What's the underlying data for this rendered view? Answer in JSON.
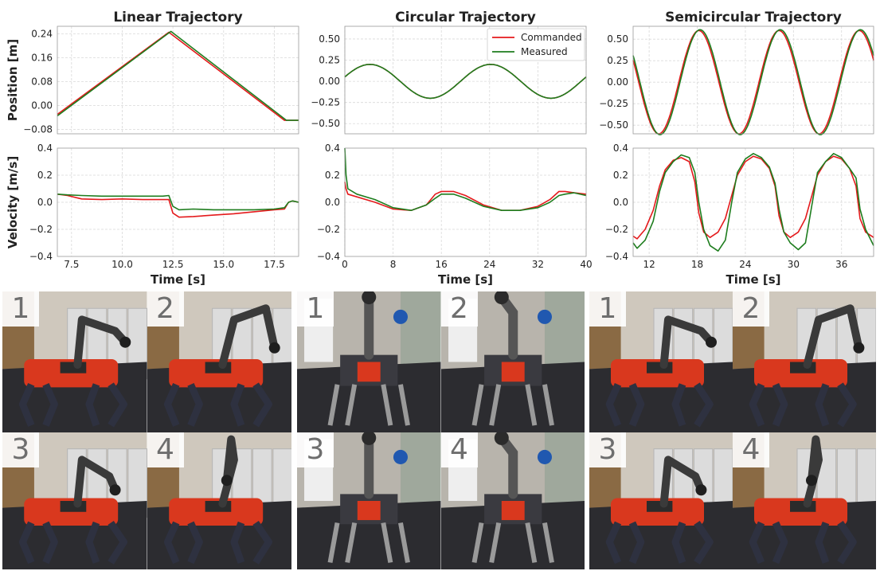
{
  "colors": {
    "commanded": "#e41a1c",
    "measured": "#1e7d1e",
    "grid": "#d9d9d9",
    "axis": "#9a9a9a",
    "robot_body": "#d9381e",
    "wall": "#cfc8bd",
    "floor": "#2c2c30",
    "locker": "#dcdcdc"
  },
  "legend": {
    "commanded": "Commanded",
    "measured": "Measured"
  },
  "ylabels": {
    "position": "Position [m]",
    "velocity": "Velocity [m/s]"
  },
  "chart_data": [
    {
      "type": "line",
      "title": "Linear Trajectory",
      "xlabel": "Time [s]",
      "ylabel": "Position [m]",
      "xlim": [
        6.8,
        18.7
      ],
      "ylim": [
        -0.095,
        0.265
      ],
      "yticks": [
        -0.08,
        0.0,
        0.08,
        0.16,
        0.24
      ],
      "ytick_labels": [
        "−0.08",
        "0.00",
        "0.08",
        "0.16",
        "0.24"
      ],
      "xticks": [
        7.5,
        10.0,
        12.5,
        15.0,
        17.5
      ],
      "xtick_labels": [
        "7.5",
        "10.0",
        "12.5",
        "15.0",
        "17.5"
      ],
      "series": [
        {
          "name": "Commanded",
          "x": [
            6.8,
            12.3,
            18.0,
            18.7
          ],
          "y": [
            -0.03,
            0.245,
            -0.05,
            -0.05
          ]
        },
        {
          "name": "Measured",
          "x": [
            6.8,
            12.4,
            18.1,
            18.7
          ],
          "y": [
            -0.035,
            0.248,
            -0.05,
            -0.05
          ]
        }
      ]
    },
    {
      "type": "line",
      "title": "Circular Trajectory",
      "xlabel": "Time [s]",
      "ylabel": "Position [m]",
      "xlim": [
        0,
        40
      ],
      "ylim": [
        -0.62,
        0.65
      ],
      "yticks": [
        -0.5,
        -0.25,
        0.0,
        0.25,
        0.5
      ],
      "ytick_labels": [
        "−0.50",
        "−0.25",
        "0.00",
        "0.25",
        "0.50"
      ],
      "xticks": [
        0,
        8,
        16,
        24,
        32,
        40
      ],
      "xtick_labels": [
        "0",
        "8",
        "16",
        "24",
        "32",
        "40"
      ],
      "legend_position": "top-right",
      "series": [
        {
          "name": "Commanded",
          "fn": "sine",
          "amp": 0.2,
          "period": 20,
          "phase_deg": 15,
          "offset": 0.0
        },
        {
          "name": "Measured",
          "fn": "sine",
          "amp": 0.2,
          "period": 20,
          "phase_deg": 15,
          "offset": 0.0
        }
      ]
    },
    {
      "type": "line",
      "title": "Semicircular Trajectory",
      "xlabel": "Time [s]",
      "ylabel": "Position [m]",
      "xlim": [
        10,
        40
      ],
      "ylim": [
        -0.6,
        0.65
      ],
      "yticks": [
        -0.5,
        -0.25,
        0.0,
        0.25,
        0.5
      ],
      "ytick_labels": [
        "−0.50",
        "−0.25",
        "0.00",
        "0.25",
        "0.50"
      ],
      "xticks": [
        12,
        18,
        24,
        30,
        36
      ],
      "xtick_labels": [
        "12",
        "18",
        "24",
        "30",
        "36"
      ],
      "series": [
        {
          "name": "Commanded",
          "fn": "cosine",
          "amp": 0.6,
          "period": 10,
          "peak_at": 18.2,
          "offset": 0.0
        },
        {
          "name": "Measured",
          "fn": "cosine",
          "amp": 0.61,
          "period": 10,
          "peak_at": 18.35,
          "offset": 0.0
        }
      ]
    },
    {
      "type": "line",
      "title": "",
      "xlabel": "Time [s]",
      "ylabel": "Velocity [m/s]",
      "xlim": [
        6.8,
        18.7
      ],
      "ylim": [
        -0.4,
        0.4
      ],
      "yticks": [
        -0.4,
        -0.2,
        0.0,
        0.2,
        0.4
      ],
      "ytick_labels": [
        "−0.4",
        "−0.2",
        "0.0",
        "0.2",
        "0.4"
      ],
      "xticks": [
        7.5,
        10.0,
        12.5,
        15.0,
        17.5
      ],
      "xtick_labels": [
        "7.5",
        "10.0",
        "12.5",
        "15.0",
        "17.5"
      ],
      "series": [
        {
          "name": "Commanded",
          "x": [
            6.8,
            7.3,
            8.0,
            9.0,
            10.0,
            11.0,
            12.0,
            12.3,
            12.5,
            12.8,
            13.5,
            14.5,
            15.5,
            16.5,
            17.5,
            18.0,
            18.2,
            18.4,
            18.7
          ],
          "y": [
            0.06,
            0.05,
            0.025,
            0.02,
            0.025,
            0.02,
            0.02,
            0.02,
            -0.08,
            -0.11,
            -0.105,
            -0.095,
            -0.085,
            -0.07,
            -0.055,
            -0.05,
            0.0,
            0.01,
            0.0
          ]
        },
        {
          "name": "Measured",
          "x": [
            6.8,
            7.3,
            8.0,
            9.0,
            10.0,
            11.0,
            12.0,
            12.3,
            12.5,
            12.8,
            13.5,
            14.5,
            15.5,
            16.5,
            17.5,
            18.0,
            18.2,
            18.4,
            18.7
          ],
          "y": [
            0.06,
            0.055,
            0.05,
            0.045,
            0.045,
            0.045,
            0.045,
            0.05,
            -0.03,
            -0.055,
            -0.05,
            -0.055,
            -0.055,
            -0.055,
            -0.05,
            -0.04,
            0.0,
            0.01,
            0.0
          ]
        }
      ]
    },
    {
      "type": "line",
      "title": "",
      "xlabel": "Time [s]",
      "ylabel": "Velocity [m/s]",
      "xlim": [
        0,
        40
      ],
      "ylim": [
        -0.4,
        0.4
      ],
      "yticks": [
        -0.4,
        -0.2,
        0.0,
        0.2,
        0.4
      ],
      "ytick_labels": [
        "−0.4",
        "−0.2",
        "0.0",
        "0.2",
        "0.4"
      ],
      "xticks": [
        0,
        8,
        16,
        24,
        32,
        40
      ],
      "xtick_labels": [
        "0",
        "8",
        "16",
        "24",
        "32",
        "40"
      ],
      "series": [
        {
          "name": "Commanded",
          "x": [
            0.0,
            0.2,
            0.5,
            2.0,
            5.0,
            8.0,
            11.0,
            13.5,
            15.0,
            16.0,
            18.0,
            20.0,
            23.0,
            26.0,
            29.0,
            32.0,
            34.0,
            35.5,
            36.5,
            38.0,
            40.0
          ],
          "y": [
            0.15,
            0.1,
            0.06,
            0.04,
            0.0,
            -0.05,
            -0.06,
            -0.02,
            0.06,
            0.08,
            0.08,
            0.05,
            -0.02,
            -0.06,
            -0.06,
            -0.03,
            0.02,
            0.08,
            0.08,
            0.07,
            0.06
          ]
        },
        {
          "name": "Measured",
          "x": [
            0.0,
            0.2,
            0.5,
            2.0,
            5.0,
            8.0,
            11.0,
            13.5,
            15.0,
            16.0,
            18.0,
            20.0,
            23.0,
            26.0,
            29.0,
            32.0,
            34.0,
            35.5,
            36.5,
            38.0,
            40.0
          ],
          "y": [
            0.4,
            0.2,
            0.1,
            0.06,
            0.02,
            -0.04,
            -0.06,
            -0.02,
            0.03,
            0.06,
            0.06,
            0.03,
            -0.03,
            -0.06,
            -0.06,
            -0.04,
            0.0,
            0.05,
            0.06,
            0.07,
            0.05
          ]
        }
      ]
    },
    {
      "type": "line",
      "title": "",
      "xlabel": "Time [s]",
      "ylabel": "Velocity [m/s]",
      "xlim": [
        10,
        40
      ],
      "ylim": [
        -0.4,
        0.4
      ],
      "yticks": [
        -0.4,
        -0.2,
        0.0,
        0.2,
        0.4
      ],
      "ytick_labels": [
        "−0.4",
        "−0.2",
        "0.0",
        "0.2",
        "0.4"
      ],
      "xticks": [
        12,
        18,
        24,
        30,
        36
      ],
      "xtick_labels": [
        "12",
        "18",
        "24",
        "30",
        "36"
      ],
      "series": [
        {
          "name": "Commanded",
          "x": [
            10.0,
            10.5,
            11.5,
            12.5,
            13.3,
            14.0,
            15.0,
            16.0,
            17.0,
            17.7,
            18.2,
            18.8,
            19.6,
            20.6,
            21.5,
            22.3,
            23.0,
            24.0,
            25.0,
            26.0,
            27.0,
            27.7,
            28.2,
            28.8,
            29.6,
            30.6,
            31.5,
            32.3,
            33.0,
            34.0,
            35.0,
            36.0,
            37.0,
            37.8,
            38.3,
            39.0,
            40.0
          ],
          "y": [
            -0.25,
            -0.27,
            -0.2,
            -0.06,
            0.12,
            0.24,
            0.31,
            0.33,
            0.3,
            0.15,
            -0.08,
            -0.22,
            -0.26,
            -0.22,
            -0.12,
            0.05,
            0.2,
            0.3,
            0.34,
            0.32,
            0.25,
            0.12,
            -0.1,
            -0.22,
            -0.26,
            -0.22,
            -0.12,
            0.05,
            0.2,
            0.3,
            0.34,
            0.32,
            0.25,
            0.12,
            -0.12,
            -0.22,
            -0.26
          ]
        },
        {
          "name": "Measured",
          "x": [
            10.0,
            10.5,
            11.5,
            12.5,
            13.3,
            14.0,
            15.0,
            16.0,
            17.0,
            17.7,
            18.2,
            18.8,
            19.6,
            20.6,
            21.5,
            22.3,
            23.0,
            24.0,
            25.0,
            26.0,
            27.0,
            27.7,
            28.2,
            28.8,
            29.6,
            30.6,
            31.5,
            32.3,
            33.0,
            34.0,
            35.0,
            36.0,
            37.0,
            37.8,
            38.3,
            39.0,
            40.0
          ],
          "y": [
            -0.3,
            -0.34,
            -0.28,
            -0.14,
            0.08,
            0.22,
            0.3,
            0.35,
            0.33,
            0.22,
            0.0,
            -0.2,
            -0.32,
            -0.36,
            -0.28,
            0.0,
            0.22,
            0.32,
            0.36,
            0.33,
            0.26,
            0.14,
            -0.05,
            -0.22,
            -0.3,
            -0.35,
            -0.3,
            -0.02,
            0.22,
            0.3,
            0.36,
            0.33,
            0.25,
            0.18,
            -0.05,
            -0.2,
            -0.32
          ]
        }
      ]
    }
  ],
  "photos": {
    "groups": [
      {
        "name": "linear",
        "labels": [
          "1",
          "2",
          "3",
          "4"
        ]
      },
      {
        "name": "circular",
        "labels": [
          "1",
          "2",
          "3",
          "4"
        ]
      },
      {
        "name": "semicircular",
        "labels": [
          "1",
          "2",
          "3",
          "4"
        ]
      }
    ]
  }
}
